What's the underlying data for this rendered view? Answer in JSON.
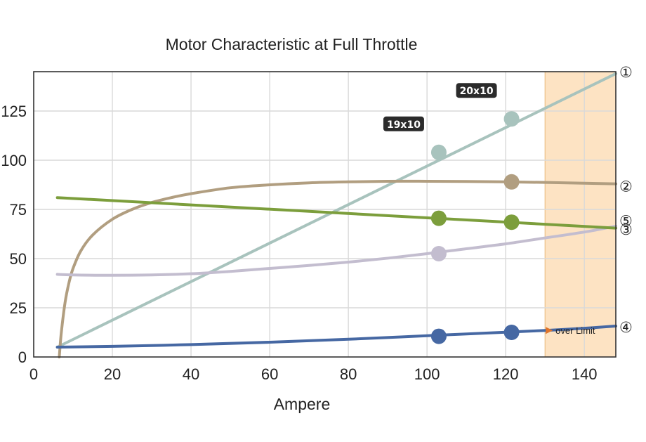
{
  "chart_data": {
    "type": "line",
    "title": "Motor Characteristic at Full Throttle",
    "xlabel": "Ampere",
    "ylabel": "",
    "xlim": [
      0,
      148
    ],
    "ylim": [
      0,
      145
    ],
    "xticks": [
      0,
      20,
      40,
      60,
      80,
      100,
      120,
      140
    ],
    "yticks": [
      0,
      25,
      50,
      75,
      100,
      125
    ],
    "grid": true,
    "limit_zone": {
      "x_from": 130,
      "x_to": 148,
      "color": "#fde3c3",
      "border": "#e8b87a"
    },
    "over_limit_label": "over Limit",
    "series": [
      {
        "marker": "①",
        "color": "#a8c3bd",
        "width": 4,
        "x": [
          6,
          148
        ],
        "y": [
          5,
          144
        ]
      },
      {
        "marker": "②",
        "color": "#b19e80",
        "width": 4,
        "x": [
          6.5,
          7,
          8,
          9,
          10,
          12,
          15,
          20,
          25,
          30,
          35,
          40,
          50,
          60,
          70,
          80,
          90,
          100,
          110,
          120,
          130,
          140,
          148
        ],
        "y": [
          0,
          12,
          28,
          38,
          45,
          54,
          62,
          70,
          75,
          78.5,
          81,
          83,
          86,
          87.5,
          88.5,
          89,
          89.3,
          89.3,
          89.2,
          89,
          88.7,
          88.3,
          88
        ]
      },
      {
        "marker": "③",
        "color": "#c3bdcf",
        "width": 4,
        "x": [
          6,
          10,
          20,
          30,
          40,
          50,
          60,
          70,
          80,
          90,
          100,
          110,
          120,
          130,
          140,
          148
        ],
        "y": [
          42,
          41.7,
          41.5,
          41.7,
          42.3,
          43.5,
          45,
          46.5,
          48.2,
          50.2,
          52.5,
          55,
          57.5,
          60.5,
          63.5,
          66.5
        ]
      },
      {
        "marker": "④",
        "color": "#4668a3",
        "width": 4,
        "x": [
          6,
          20,
          40,
          60,
          80,
          100,
          120,
          130,
          140,
          148
        ],
        "y": [
          5,
          5.4,
          6.3,
          7.5,
          9,
          10.8,
          12.6,
          13.5,
          14.6,
          15.7
        ]
      },
      {
        "marker": "⑤",
        "color": "#7c9e3c",
        "width": 4,
        "x": [
          6,
          148
        ],
        "y": [
          81,
          65.5
        ]
      }
    ],
    "points": [
      {
        "x": 103,
        "y": 104,
        "color": "#a8c3bd",
        "label": "19x10"
      },
      {
        "x": 121.5,
        "y": 121,
        "color": "#a8c3bd",
        "label": "20x10"
      },
      {
        "x": 121.5,
        "y": 89,
        "color": "#b19e80"
      },
      {
        "x": 103,
        "y": 70.5,
        "color": "#7c9e3c"
      },
      {
        "x": 121.5,
        "y": 68.5,
        "color": "#7c9e3c"
      },
      {
        "x": 103,
        "y": 52.5,
        "color": "#c3bdcf"
      },
      {
        "x": 103,
        "y": 10.5,
        "color": "#4668a3"
      },
      {
        "x": 121.5,
        "y": 12.5,
        "color": "#4668a3"
      }
    ]
  }
}
